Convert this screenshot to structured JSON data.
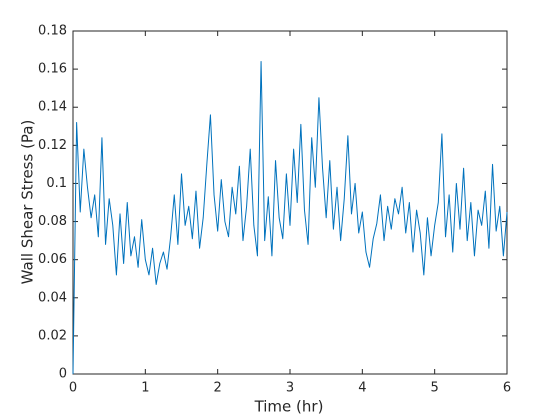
{
  "chart_data": {
    "type": "line",
    "x_label": "Time (hr)",
    "y_label": "Wall Shear Stress (Pa)",
    "xlim": [
      0,
      6
    ],
    "ylim": [
      0,
      0.18
    ],
    "xticks": [
      0,
      1,
      2,
      3,
      4,
      5,
      6
    ],
    "yticks": [
      0,
      0.02,
      0.04,
      0.06,
      0.08,
      0.1,
      0.12,
      0.14,
      0.16,
      0.18
    ],
    "grid": false,
    "x": [
      0,
      0.05,
      0.1,
      0.15,
      0.2,
      0.25,
      0.3,
      0.35,
      0.4,
      0.45,
      0.5,
      0.55,
      0.6,
      0.65,
      0.7,
      0.75,
      0.8,
      0.85,
      0.9,
      0.95,
      1,
      1.05,
      1.1,
      1.15,
      1.2,
      1.25,
      1.3,
      1.35,
      1.4,
      1.45,
      1.5,
      1.55,
      1.6,
      1.65,
      1.7,
      1.75,
      1.8,
      1.85,
      1.9,
      1.95,
      2,
      2.05,
      2.1,
      2.15,
      2.2,
      2.25,
      2.3,
      2.35,
      2.4,
      2.45,
      2.5,
      2.55,
      2.6,
      2.65,
      2.7,
      2.75,
      2.8,
      2.85,
      2.9,
      2.95,
      3,
      3.05,
      3.1,
      3.15,
      3.2,
      3.25,
      3.3,
      3.35,
      3.4,
      3.45,
      3.5,
      3.55,
      3.6,
      3.65,
      3.7,
      3.75,
      3.8,
      3.85,
      3.9,
      3.95,
      4,
      4.05,
      4.1,
      4.15,
      4.2,
      4.25,
      4.3,
      4.35,
      4.4,
      4.45,
      4.5,
      4.55,
      4.6,
      4.65,
      4.7,
      4.75,
      4.8,
      4.85,
      4.9,
      4.95,
      5,
      5.05,
      5.1,
      5.15,
      5.2,
      5.25,
      5.3,
      5.35,
      5.4,
      5.45,
      5.5,
      5.55,
      5.6,
      5.65,
      5.7,
      5.75,
      5.8,
      5.85,
      5.9,
      5.95,
      6
    ],
    "series": [
      {
        "color": "#0072bd",
        "values": [
          0,
          0.132,
          0.085,
          0.118,
          0.098,
          0.082,
          0.094,
          0.072,
          0.124,
          0.068,
          0.092,
          0.078,
          0.052,
          0.084,
          0.058,
          0.09,
          0.062,
          0.072,
          0.056,
          0.081,
          0.06,
          0.052,
          0.066,
          0.047,
          0.058,
          0.064,
          0.055,
          0.072,
          0.094,
          0.068,
          0.105,
          0.078,
          0.088,
          0.071,
          0.096,
          0.066,
          0.082,
          0.11,
          0.136,
          0.094,
          0.075,
          0.102,
          0.08,
          0.072,
          0.098,
          0.084,
          0.109,
          0.07,
          0.088,
          0.118,
          0.078,
          0.062,
          0.164,
          0.07,
          0.093,
          0.062,
          0.112,
          0.082,
          0.071,
          0.105,
          0.078,
          0.118,
          0.09,
          0.131,
          0.086,
          0.068,
          0.124,
          0.098,
          0.145,
          0.108,
          0.082,
          0.112,
          0.076,
          0.098,
          0.07,
          0.092,
          0.125,
          0.084,
          0.1,
          0.074,
          0.085,
          0.064,
          0.056,
          0.071,
          0.079,
          0.094,
          0.07,
          0.088,
          0.076,
          0.092,
          0.084,
          0.098,
          0.074,
          0.09,
          0.064,
          0.086,
          0.074,
          0.052,
          0.082,
          0.062,
          0.078,
          0.09,
          0.126,
          0.072,
          0.094,
          0.064,
          0.1,
          0.076,
          0.108,
          0.07,
          0.09,
          0.062,
          0.086,
          0.078,
          0.096,
          0.066,
          0.11,
          0.075,
          0.088,
          0.062,
          0.085
        ]
      }
    ]
  }
}
